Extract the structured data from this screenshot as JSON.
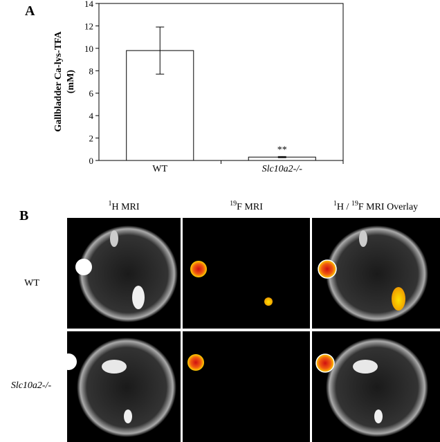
{
  "panel_labels": [
    "A",
    "B"
  ],
  "chart_data": {
    "type": "bar",
    "ylabel": [
      "Gallbladder Ca-lys-TFA",
      "(mM)"
    ],
    "categories": [
      "WT",
      "Slc10a2-/-"
    ],
    "values": [
      9.8,
      0.3
    ],
    "errors": [
      2.1,
      0.05
    ],
    "color": "#ffffff",
    "edge_color": "#000000",
    "ylim": [
      0,
      14
    ],
    "yticks": [
      0,
      2,
      4,
      6,
      8,
      10,
      12,
      14
    ],
    "annotations": [
      "**"
    ]
  },
  "mri": {
    "columns": [
      [
        "1",
        "H MRI"
      ],
      [
        "19",
        "F MRI"
      ],
      [
        "1",
        "H / ",
        "19",
        "F MRI Overlay"
      ]
    ],
    "rows": [
      "WT",
      "Slc10a2-/-"
    ]
  }
}
